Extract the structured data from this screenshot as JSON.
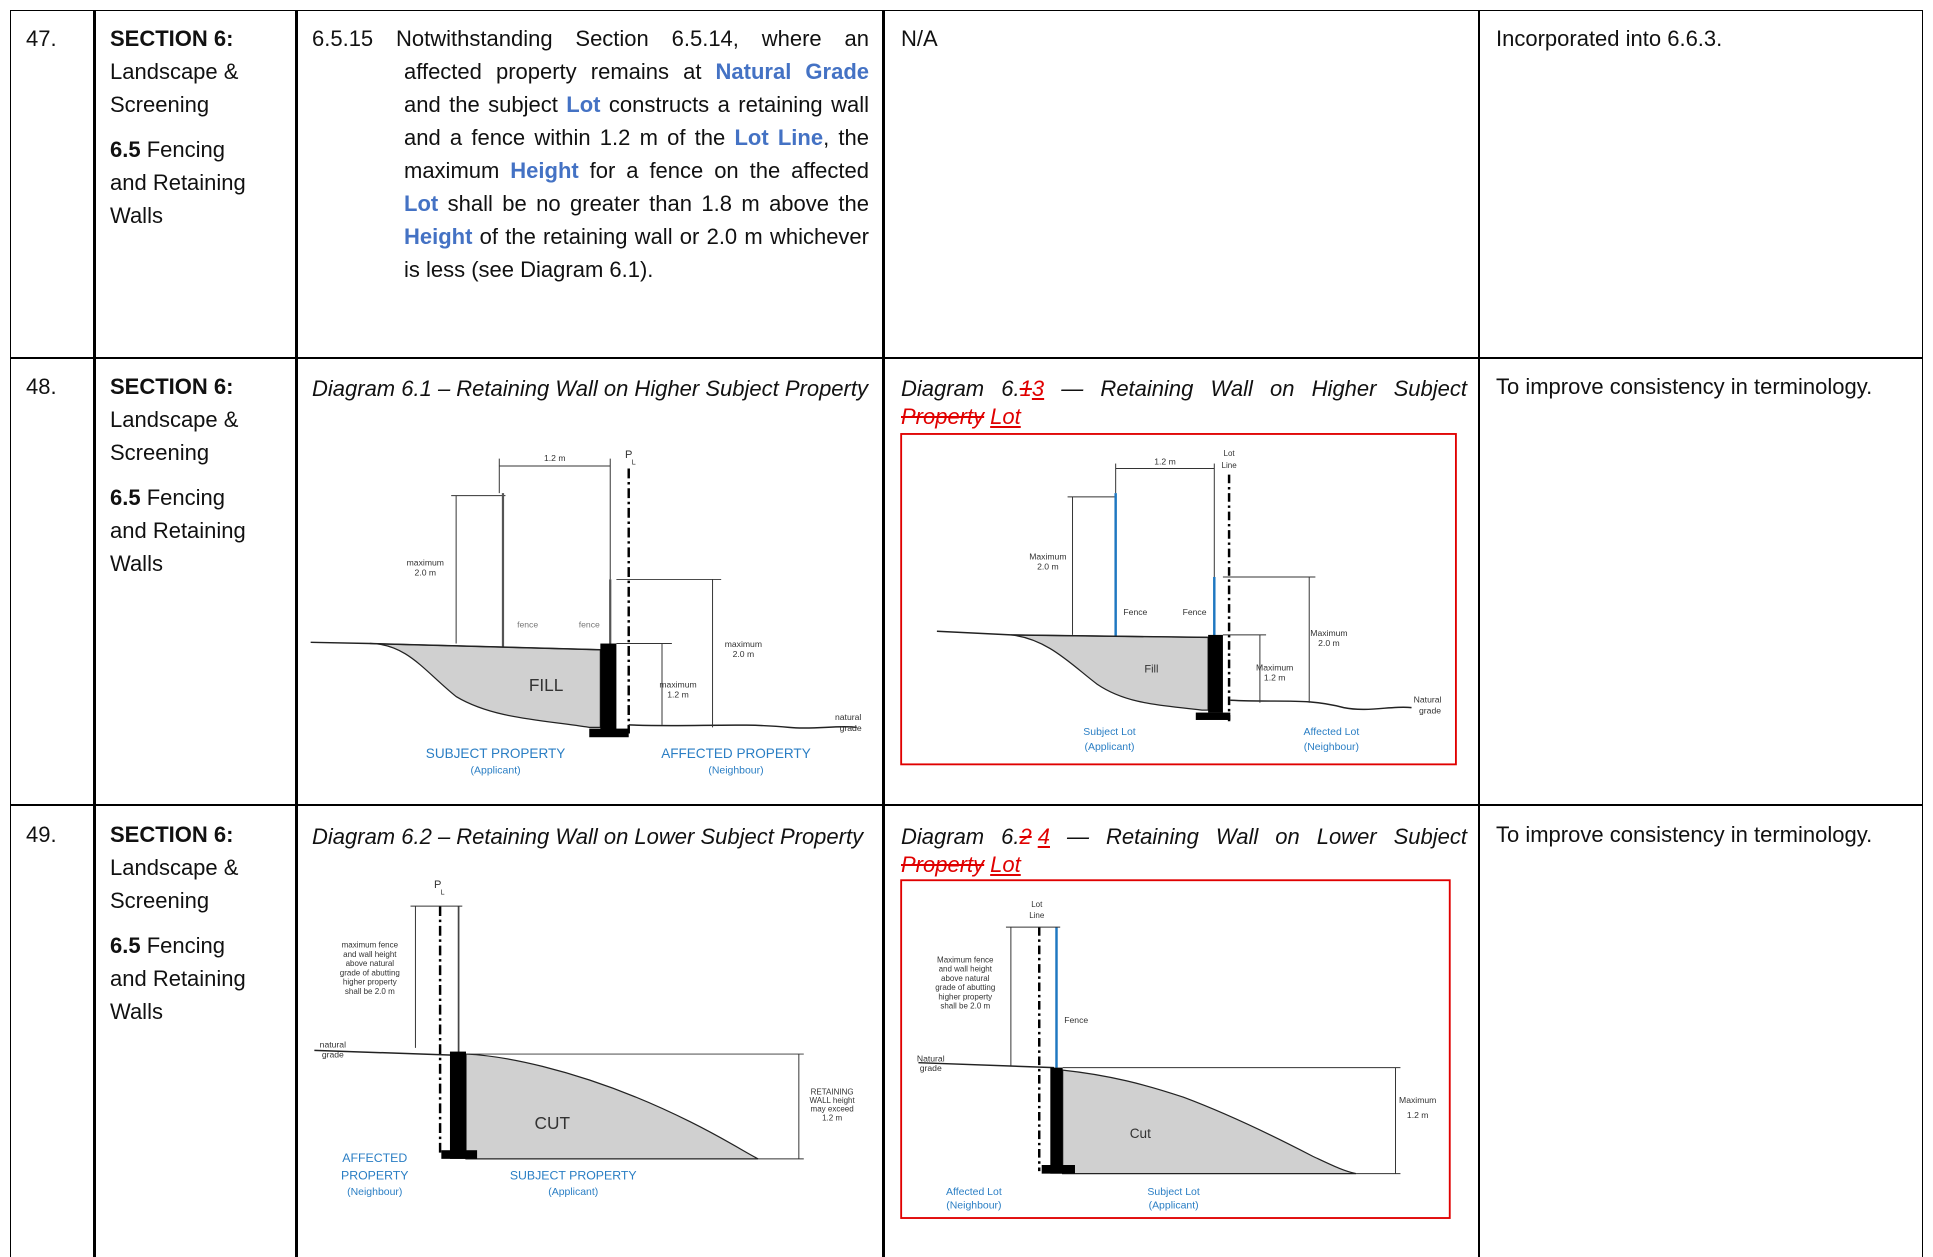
{
  "rows": [
    {
      "number": "47.",
      "section": "SECTION 6:",
      "section_name": "Landscape & Screening",
      "subsection_number": "6.5",
      "subsection_name": "Fencing and Retaining Walls",
      "current": {
        "clause_number": "6.5.15",
        "text_parts": [
          "Notwithstanding Section 6.5.14, where an affected property remains at ",
          "Natural Grade",
          " and the subject ",
          "Lot",
          " constructs a retaining wall and a fence within 1.2 m of the ",
          "Lot Line",
          ", the maximum ",
          "Height",
          " for a fence on the affected ",
          "Lot",
          " shall be no greater than 1.8 m above the ",
          "Height",
          " of the retaining wall or 2.0 m whichever is less (see Diagram 6.1)."
        ]
      },
      "proposed": {
        "text": "N/A"
      },
      "rationale": "Incorporated into 6.6.3."
    },
    {
      "number": "48.",
      "section": "SECTION 6:",
      "section_name": "Landscape & Screening",
      "subsection_number": "6.5",
      "subsection_name": "Fencing and Retaining Walls",
      "current": {
        "caption": "Diagram 6.1 – Retaining Wall on Higher Subject Property",
        "labels": [
          "1.2 m",
          "P",
          "L",
          "maximum",
          "2.0 m",
          "fence",
          "fence",
          "maximum",
          "2.0 m",
          "FILL",
          "maximum",
          "1.2 m",
          "natural",
          "grade",
          "SUBJECT PROPERTY",
          "(Applicant)",
          "AFFECTED PROPERTY",
          "(Neighbour)"
        ]
      },
      "proposed": {
        "caption_parts": [
          "Diagram 6.",
          "1",
          "3",
          " — Retaining Wall on Higher Subject ",
          "Property",
          "Lot"
        ],
        "labels": [
          "1.2 m",
          "Lot",
          "Line",
          "Maximum",
          "2.0 m",
          "Fence",
          "Fence",
          "Maximum",
          "2.0 m",
          "Fill",
          "Maximum",
          "1.2 m",
          "Natural",
          "grade",
          "Subject Lot",
          "(Applicant)",
          "Affected Lot",
          "(Neighbour)"
        ]
      },
      "rationale": "To improve consistency in terminology."
    },
    {
      "number": "49.",
      "section": "SECTION 6:",
      "section_name": "Landscape & Screening",
      "subsection_number": "6.5",
      "subsection_name": "Fencing and Retaining Walls",
      "current": {
        "caption": "Diagram 6.2 – Retaining Wall on Lower Subject Property",
        "labels": [
          "P",
          "L",
          "maximum fence",
          "and wall height",
          "above natural",
          "grade of abutting",
          "higher property",
          "shall be 2.0 m",
          "natural",
          "grade",
          "RETAINING",
          "WALL height",
          "may exceed",
          "1.2 m",
          "CUT",
          "AFFECTED",
          "PROPERTY",
          "(Neighbour)",
          "SUBJECT PROPERTY",
          "(Applicant)"
        ]
      },
      "proposed": {
        "caption_parts": [
          "Diagram 6.",
          "2",
          "4",
          " — Retaining Wall on Lower Subject ",
          "Property",
          "Lot"
        ],
        "labels": [
          "Lot",
          "Line",
          "Maximum fence",
          "and wall height",
          "above natural",
          "grade of abutting",
          "higher property",
          "shall be 2.0 m",
          "Fence",
          "Natural",
          "grade",
          "Maximum",
          "1.2 m",
          "Cut",
          "Affected Lot",
          "(Neighbour)",
          "Subject Lot",
          "(Applicant)"
        ]
      },
      "rationale": "To improve consistency in terminology."
    }
  ]
}
